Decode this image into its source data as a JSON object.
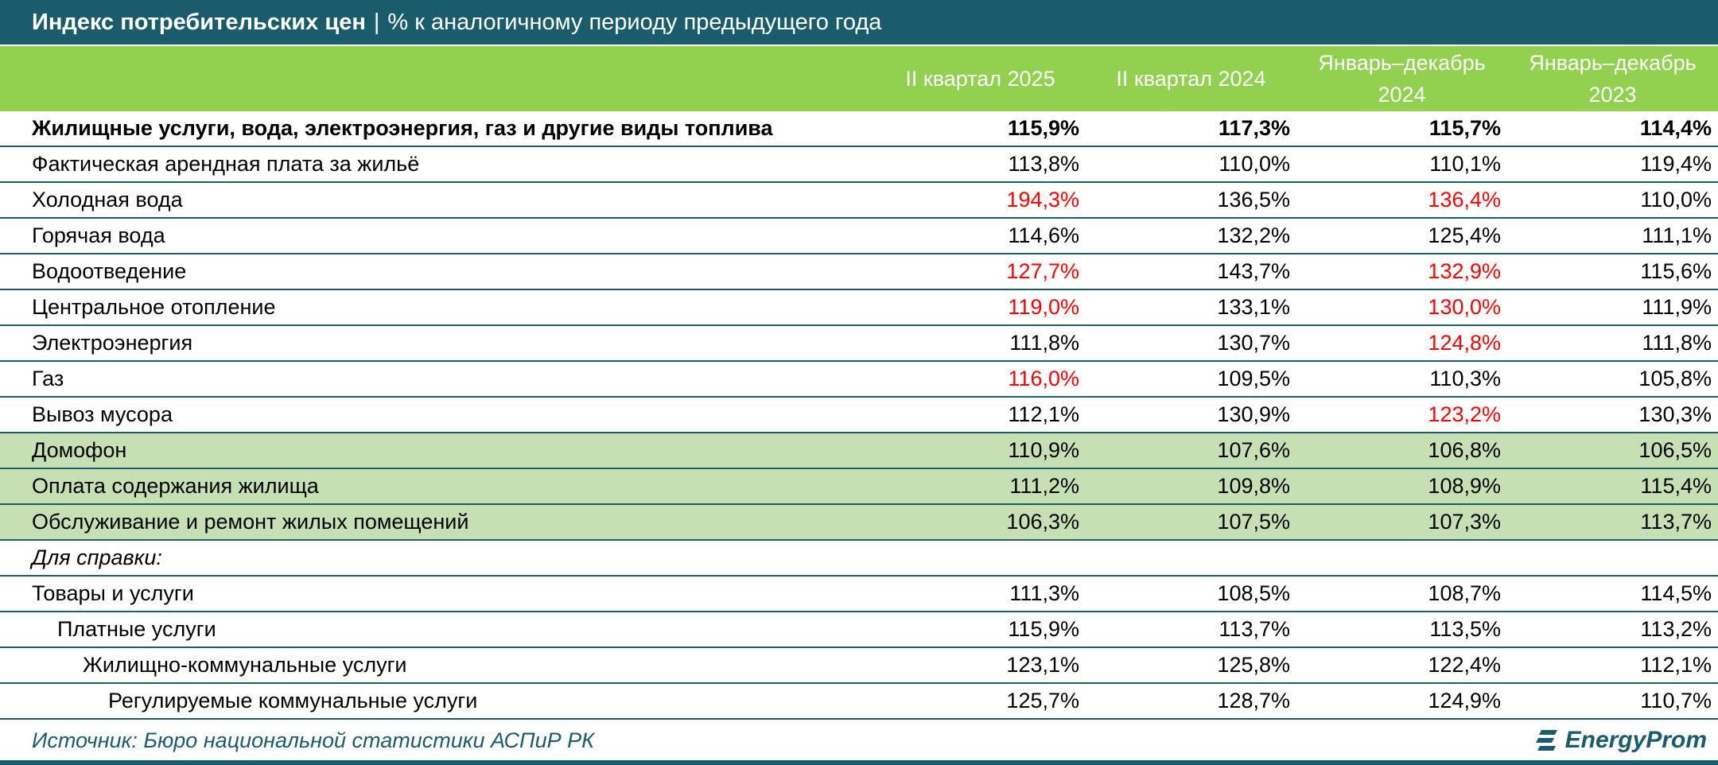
{
  "title": {
    "main": "Индекс потребительских цен",
    "separator": "|",
    "subtitle": "% к аналогичному периоду предыдущего года"
  },
  "columns": [
    {
      "line1": "II квартал 2025",
      "line2": ""
    },
    {
      "line1": "II квартал 2024",
      "line2": ""
    },
    {
      "line1": "Январь–декабрь",
      "line2": "2024"
    },
    {
      "line1": "Январь–декабрь",
      "line2": "2023"
    }
  ],
  "rows": [
    {
      "label": "Жилищные услуги, вода, электроэнергия, газ и другие виды топлива",
      "values": [
        "115,9%",
        "117,3%",
        "115,7%",
        "114,4%"
      ],
      "red": [
        false,
        false,
        false,
        false
      ],
      "style": "bold",
      "indent": 0
    },
    {
      "label": "Фактическая арендная плата за жильё",
      "values": [
        "113,8%",
        "110,0%",
        "110,1%",
        "119,4%"
      ],
      "red": [
        false,
        false,
        false,
        false
      ],
      "style": "",
      "indent": 0
    },
    {
      "label": "Холодная вода",
      "values": [
        "194,3%",
        "136,5%",
        "136,4%",
        "110,0%"
      ],
      "red": [
        true,
        false,
        true,
        false
      ],
      "style": "",
      "indent": 0
    },
    {
      "label": "Горячая вода",
      "values": [
        "114,6%",
        "132,2%",
        "125,4%",
        "111,1%"
      ],
      "red": [
        false,
        false,
        false,
        false
      ],
      "style": "",
      "indent": 0
    },
    {
      "label": "Водоотведение",
      "values": [
        "127,7%",
        "143,7%",
        "132,9%",
        "115,6%"
      ],
      "red": [
        true,
        false,
        true,
        false
      ],
      "style": "",
      "indent": 0
    },
    {
      "label": "Центральное отопление",
      "values": [
        "119,0%",
        "133,1%",
        "130,0%",
        "111,9%"
      ],
      "red": [
        true,
        false,
        true,
        false
      ],
      "style": "",
      "indent": 0
    },
    {
      "label": "Электроэнергия",
      "values": [
        "111,8%",
        "130,7%",
        "124,8%",
        "111,8%"
      ],
      "red": [
        false,
        false,
        true,
        false
      ],
      "style": "",
      "indent": 0
    },
    {
      "label": "Газ",
      "values": [
        "116,0%",
        "109,5%",
        "110,3%",
        "105,8%"
      ],
      "red": [
        true,
        false,
        false,
        false
      ],
      "style": "",
      "indent": 0
    },
    {
      "label": "Вывоз мусора",
      "values": [
        "112,1%",
        "130,9%",
        "123,2%",
        "130,3%"
      ],
      "red": [
        false,
        false,
        true,
        false
      ],
      "style": "",
      "indent": 0
    },
    {
      "label": "Домофон",
      "values": [
        "110,9%",
        "107,6%",
        "106,8%",
        "106,5%"
      ],
      "red": [
        false,
        false,
        false,
        false
      ],
      "style": "highlight",
      "indent": 0
    },
    {
      "label": "Оплата содержания жилища",
      "values": [
        "111,2%",
        "109,8%",
        "108,9%",
        "115,4%"
      ],
      "red": [
        false,
        false,
        false,
        false
      ],
      "style": "highlight",
      "indent": 0
    },
    {
      "label": "Обслуживание и ремонт жилых помещений",
      "values": [
        "106,3%",
        "107,5%",
        "107,3%",
        "113,7%"
      ],
      "red": [
        false,
        false,
        false,
        false
      ],
      "style": "highlight",
      "indent": 0
    },
    {
      "label": "Для справки:",
      "values": [
        "",
        "",
        "",
        ""
      ],
      "red": [
        false,
        false,
        false,
        false
      ],
      "style": "note",
      "indent": 0
    },
    {
      "label": "Товары и услуги",
      "values": [
        "111,3%",
        "108,5%",
        "108,7%",
        "114,5%"
      ],
      "red": [
        false,
        false,
        false,
        false
      ],
      "style": "",
      "indent": 0
    },
    {
      "label": "Платные услуги",
      "values": [
        "115,9%",
        "113,7%",
        "113,5%",
        "113,2%"
      ],
      "red": [
        false,
        false,
        false,
        false
      ],
      "style": "",
      "indent": 1
    },
    {
      "label": "Жилищно-коммунальные услуги",
      "values": [
        "123,1%",
        "125,8%",
        "122,4%",
        "112,1%"
      ],
      "red": [
        false,
        false,
        false,
        false
      ],
      "style": "",
      "indent": 2
    },
    {
      "label": "Регулируемые коммунальные услуги",
      "values": [
        "125,7%",
        "128,7%",
        "124,9%",
        "110,7%"
      ],
      "red": [
        false,
        false,
        false,
        false
      ],
      "style": "",
      "indent": 3
    }
  ],
  "footer": {
    "source": "Источник: Бюро национальной статистики АСПиР РК",
    "logo_text": "EnergyProm"
  },
  "colors": {
    "title_bg": "#1a5c6b",
    "header_bg": "#92d050",
    "highlight_row": "#c6e0b4",
    "alert_text": "#ff0000"
  }
}
